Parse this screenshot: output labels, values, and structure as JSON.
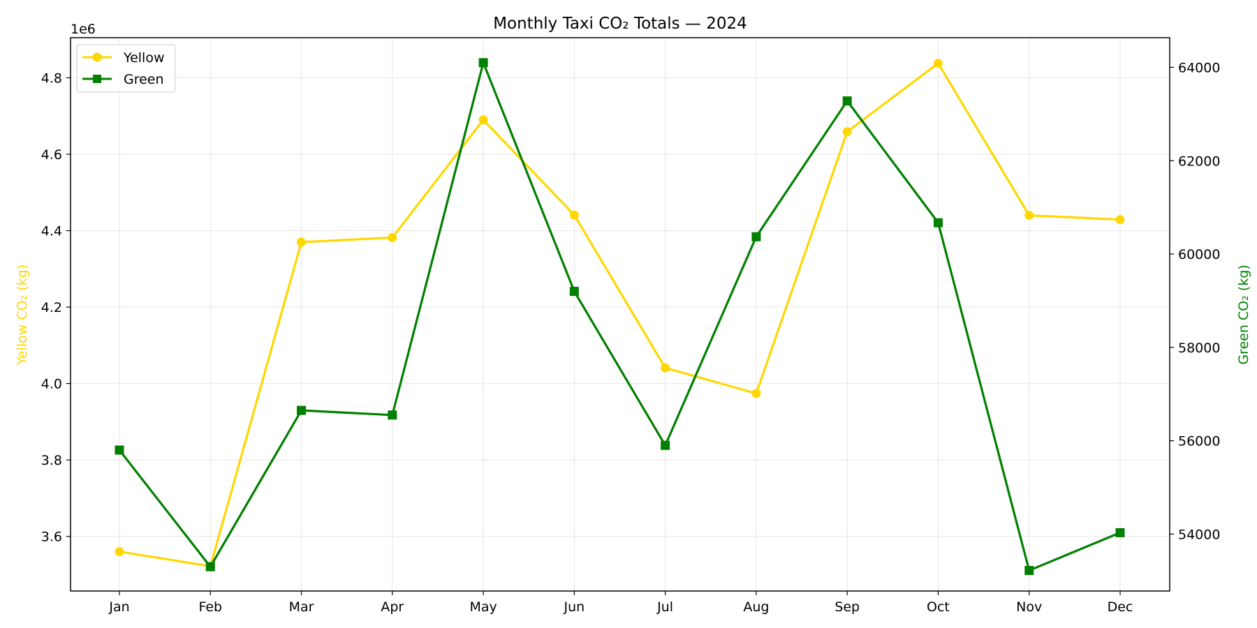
{
  "chart_data": {
    "type": "line",
    "title": "Monthly Taxi CO₂ Totals — 2024",
    "categories": [
      "Jan",
      "Feb",
      "Mar",
      "Apr",
      "May",
      "Jun",
      "Jul",
      "Aug",
      "Sep",
      "Oct",
      "Nov",
      "Dec"
    ],
    "series": [
      {
        "name": "Yellow",
        "axis": "left",
        "color": "#FFD700",
        "marker": "circle",
        "values": [
          3560000,
          3522000,
          4370000,
          4382000,
          4690000,
          4441000,
          4041000,
          3974000,
          4659000,
          4838000,
          4440000,
          4429000
        ]
      },
      {
        "name": "Green",
        "axis": "right",
        "color": "#008000",
        "marker": "square",
        "values": [
          55800,
          53300,
          56650,
          56550,
          64100,
          59200,
          55900,
          60370,
          63280,
          60670,
          53220,
          54030
        ]
      }
    ],
    "y_left": {
      "label": "Yellow CO₂ (kg)",
      "scale_text": "1e6",
      "ylim": [
        3.457,
        4.905
      ],
      "ticks": [
        "3.6",
        "3.8",
        "4.0",
        "4.2",
        "4.4",
        "4.6",
        "4.8"
      ],
      "tick_values": [
        3.6,
        3.8,
        4.0,
        4.2,
        4.4,
        4.6,
        4.8
      ],
      "color": "#FFD700"
    },
    "y_right": {
      "label": "Green CO₂ (kg)",
      "ylim": [
        52780,
        64635
      ],
      "ticks": [
        "54000",
        "56000",
        "58000",
        "60000",
        "62000",
        "64000"
      ],
      "tick_values": [
        54000,
        56000,
        58000,
        60000,
        62000,
        64000
      ],
      "color": "#008000"
    },
    "grid": true,
    "legend_position": "top-left"
  }
}
